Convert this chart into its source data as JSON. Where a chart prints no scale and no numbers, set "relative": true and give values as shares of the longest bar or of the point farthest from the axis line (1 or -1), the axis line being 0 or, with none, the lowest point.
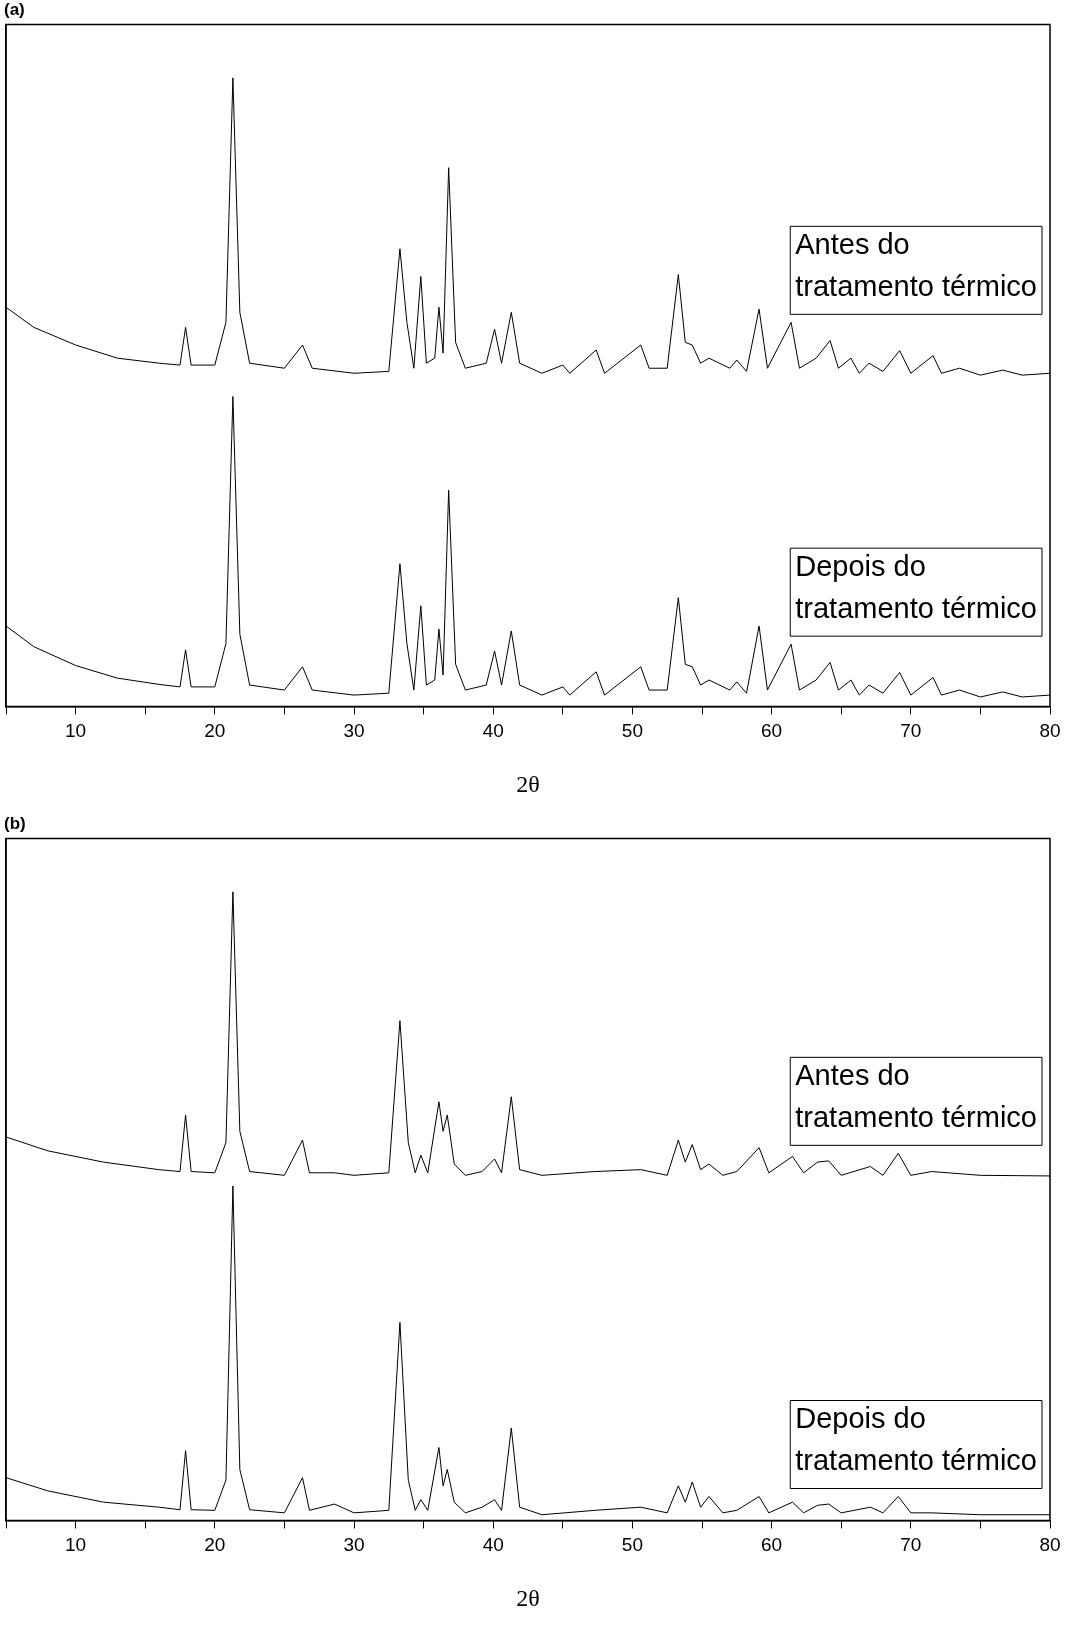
{
  "chart_data": [
    {
      "type": "line",
      "title": "(a)",
      "xlabel": "2θ",
      "relative": true,
      "xlim": [
        5,
        80
      ],
      "xticks": [
        {
          "value": 5,
          "label": null
        },
        10,
        {
          "value": 15,
          "label": null
        },
        20,
        {
          "value": 25,
          "label": null
        },
        30,
        {
          "value": 35,
          "label": null
        },
        40,
        {
          "value": 45,
          "label": null
        },
        50,
        {
          "value": 55,
          "label": null
        },
        60,
        {
          "value": 65,
          "label": null
        },
        70,
        {
          "value": 75,
          "label": null
        },
        80
      ],
      "x": [
        5,
        7,
        10,
        13,
        16,
        17.5,
        17.9,
        18.3,
        20,
        20.8,
        21.3,
        21.8,
        22.5,
        25,
        26.3,
        27,
        30,
        32.5,
        33.3,
        33.8,
        34.3,
        34.8,
        35.2,
        35.8,
        36.1,
        36.4,
        36.8,
        37.3,
        38,
        39.5,
        40.1,
        40.6,
        41.3,
        41.9,
        43.5,
        45,
        45.5,
        47.4,
        48,
        50.6,
        51.2,
        52.5,
        53.3,
        53.8,
        54.3,
        54.9,
        55.5,
        57,
        57.5,
        58.2,
        59.1,
        59.7,
        61.4,
        62,
        63.2,
        64.2,
        64.8,
        65.7,
        66.3,
        67,
        68,
        69.2,
        70,
        71.6,
        72.2,
        73.5,
        75,
        76.6,
        78,
        80
      ],
      "series": [
        {
          "name": "Antes do\ntratamento térmico",
          "color": "#000000",
          "values": [
            0.635,
            0.603,
            0.575,
            0.554,
            0.546,
            0.543,
            0.603,
            0.543,
            0.543,
            0.611,
            1,
            0.627,
            0.546,
            0.538,
            0.575,
            0.538,
            0.53,
            0.533,
            0.728,
            0.611,
            0.538,
            0.684,
            0.546,
            0.554,
            0.635,
            0.562,
            0.857,
            0.579,
            0.538,
            0.546,
            0.6,
            0.546,
            0.627,
            0.546,
            0.53,
            0.543,
            0.53,
            0.567,
            0.53,
            0.575,
            0.538,
            0.538,
            0.687,
            0.579,
            0.575,
            0.546,
            0.554,
            0.538,
            0.551,
            0.533,
            0.632,
            0.538,
            0.611,
            0.538,
            0.554,
            0.582,
            0.538,
            0.554,
            0.53,
            0.546,
            0.533,
            0.566,
            0.53,
            0.558,
            0.53,
            0.538,
            0.527,
            0.535,
            0.527,
            0.53
          ]
        },
        {
          "name": "Depois do\ntratamento térmico",
          "color": "#000000",
          "values": [
            0.128,
            0.095,
            0.065,
            0.045,
            0.035,
            0.031,
            0.09,
            0.031,
            0.031,
            0.1,
            0.493,
            0.115,
            0.034,
            0.026,
            0.063,
            0.026,
            0.018,
            0.021,
            0.227,
            0.1,
            0.026,
            0.16,
            0.034,
            0.042,
            0.123,
            0.05,
            0.344,
            0.067,
            0.026,
            0.034,
            0.088,
            0.034,
            0.12,
            0.034,
            0.018,
            0.031,
            0.018,
            0.055,
            0.018,
            0.063,
            0.026,
            0.026,
            0.173,
            0.067,
            0.063,
            0.034,
            0.042,
            0.026,
            0.039,
            0.021,
            0.128,
            0.026,
            0.099,
            0.026,
            0.042,
            0.07,
            0.026,
            0.042,
            0.018,
            0.034,
            0.021,
            0.054,
            0.018,
            0.046,
            0.018,
            0.026,
            0.015,
            0.023,
            0.015,
            0.018
          ]
        }
      ]
    },
    {
      "type": "line",
      "title": "(b)",
      "xlabel": "2θ",
      "relative": true,
      "xlim": [
        5,
        80
      ],
      "xticks": [
        {
          "value": 5,
          "label": null
        },
        10,
        {
          "value": 15,
          "label": null
        },
        20,
        {
          "value": 25,
          "label": null
        },
        30,
        {
          "value": 35,
          "label": null
        },
        40,
        {
          "value": 45,
          "label": null
        },
        50,
        {
          "value": 55,
          "label": null
        },
        60,
        {
          "value": 65,
          "label": null
        },
        70,
        {
          "value": 75,
          "label": null
        },
        80
      ],
      "x": [
        5,
        8,
        12,
        16,
        17.5,
        17.9,
        18.3,
        20,
        20.8,
        21.3,
        21.8,
        22.5,
        25,
        26.3,
        26.8,
        28.6,
        30,
        32.5,
        33.3,
        33.9,
        34.4,
        34.8,
        35.3,
        36.1,
        36.4,
        36.7,
        37.2,
        38,
        39.2,
        40.1,
        40.6,
        41.3,
        41.9,
        43.5,
        47.3,
        50.6,
        52.5,
        53.3,
        53.8,
        54.3,
        54.9,
        55.5,
        56.5,
        57.5,
        59.1,
        59.8,
        61.5,
        62.3,
        63.3,
        64.1,
        65,
        67.1,
        68,
        69.1,
        70,
        71.5,
        75,
        80
      ],
      "series": [
        {
          "name": "Antes do\ntratamento térmico",
          "color": "#000000",
          "values": [
            0.61,
            0.588,
            0.57,
            0.558,
            0.555,
            0.645,
            0.555,
            0.553,
            0.601,
            1,
            0.619,
            0.555,
            0.549,
            0.605,
            0.553,
            0.553,
            0.549,
            0.553,
            0.795,
            0.601,
            0.553,
            0.581,
            0.553,
            0.666,
            0.619,
            0.645,
            0.567,
            0.549,
            0.555,
            0.575,
            0.553,
            0.674,
            0.558,
            0.549,
            0.555,
            0.558,
            0.549,
            0.605,
            0.57,
            0.598,
            0.558,
            0.567,
            0.549,
            0.555,
            0.593,
            0.553,
            0.579,
            0.553,
            0.57,
            0.572,
            0.549,
            0.563,
            0.549,
            0.584,
            0.549,
            0.555,
            0.549,
            0.548
          ]
        },
        {
          "name": "Depois do\ntratamento térmico",
          "color": "#000000",
          "values": [
            0.068,
            0.047,
            0.029,
            0.021,
            0.017,
            0.111,
            0.017,
            0.016,
            0.064,
            0.532,
            0.081,
            0.017,
            0.012,
            0.068,
            0.016,
            0.026,
            0.012,
            0.016,
            0.315,
            0.064,
            0.016,
            0.033,
            0.016,
            0.116,
            0.055,
            0.081,
            0.029,
            0.012,
            0.021,
            0.033,
            0.016,
            0.147,
            0.021,
            0.009,
            0.016,
            0.021,
            0.012,
            0.055,
            0.029,
            0.061,
            0.021,
            0.038,
            0.012,
            0.016,
            0.038,
            0.012,
            0.029,
            0.012,
            0.024,
            0.026,
            0.012,
            0.021,
            0.012,
            0.038,
            0.012,
            0.012,
            0.009,
            0.009
          ]
        }
      ]
    }
  ]
}
